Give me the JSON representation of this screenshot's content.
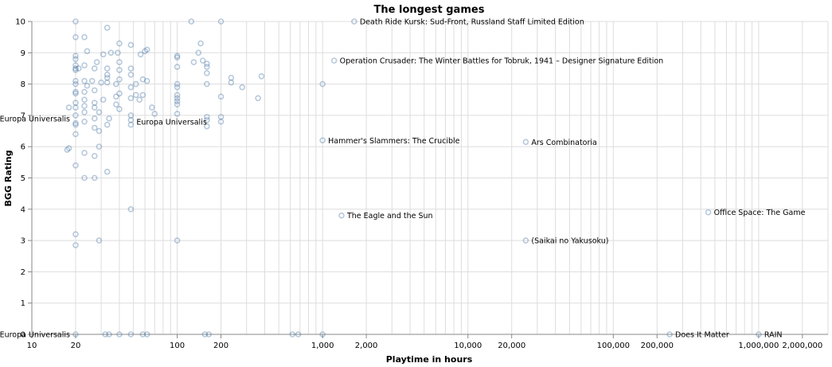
{
  "chart_data": {
    "type": "scatter",
    "title": "The longest games",
    "xlabel": "Playtime in hours",
    "ylabel": "BGG Rating",
    "x_scale": "log",
    "xlim": [
      10,
      3000000
    ],
    "ylim": [
      0,
      10
    ],
    "x_ticks": [
      10,
      20,
      100,
      200,
      1000,
      2000,
      10000,
      20000,
      100000,
      200000,
      1000000,
      2000000
    ],
    "x_tick_labels": [
      "10",
      "20",
      "100",
      "200",
      "1,000",
      "2,000",
      "10,000",
      "20,000",
      "100,000",
      "200,000",
      "1,000,000",
      "2,000,000"
    ],
    "y_ticks": [
      0,
      1,
      2,
      3,
      4,
      5,
      6,
      7,
      8,
      9,
      10
    ],
    "grid": true,
    "point_color": "#4c78a8",
    "points": [
      {
        "x": 20,
        "y": 8.9
      },
      {
        "x": 20,
        "y": 8.8
      },
      {
        "x": 20,
        "y": 8.6
      },
      {
        "x": 20,
        "y": 8.5
      },
      {
        "x": 20,
        "y": 8.45
      },
      {
        "x": 20,
        "y": 8.1
      },
      {
        "x": 20,
        "y": 8.0
      },
      {
        "x": 20,
        "y": 7.75
      },
      {
        "x": 20,
        "y": 7.7
      },
      {
        "x": 20,
        "y": 7.4
      },
      {
        "x": 20,
        "y": 7.25
      },
      {
        "x": 20,
        "y": 7.0
      },
      {
        "x": 20,
        "y": 6.75
      },
      {
        "x": 20,
        "y": 6.7
      },
      {
        "x": 20,
        "y": 6.4
      },
      {
        "x": 20,
        "y": 3.2
      },
      {
        "x": 20,
        "y": 9.5
      },
      {
        "x": 20,
        "y": 10.0
      },
      {
        "x": 20,
        "y": 5.4
      },
      {
        "x": 20,
        "y": 2.85
      },
      {
        "x": 20,
        "y": 0
      },
      {
        "x": 18,
        "y": 7.25
      },
      {
        "x": 18,
        "y": 5.95
      },
      {
        "x": 17.5,
        "y": 5.9
      },
      {
        "x": 21,
        "y": 8.5
      },
      {
        "x": 23,
        "y": 8.6
      },
      {
        "x": 23,
        "y": 8.1
      },
      {
        "x": 23,
        "y": 7.75
      },
      {
        "x": 23,
        "y": 7.5
      },
      {
        "x": 23,
        "y": 7.3
      },
      {
        "x": 23,
        "y": 7.1
      },
      {
        "x": 23,
        "y": 6.8
      },
      {
        "x": 23,
        "y": 5.8
      },
      {
        "x": 23,
        "y": 9.5
      },
      {
        "x": 23,
        "y": 5.0
      },
      {
        "x": 24,
        "y": 7.95
      },
      {
        "x": 24,
        "y": 9.05
      },
      {
        "x": 26,
        "y": 8.1
      },
      {
        "x": 27,
        "y": 7.8
      },
      {
        "x": 27,
        "y": 7.4
      },
      {
        "x": 27,
        "y": 7.25
      },
      {
        "x": 27,
        "y": 6.9
      },
      {
        "x": 27,
        "y": 6.6
      },
      {
        "x": 27,
        "y": 5.7
      },
      {
        "x": 27,
        "y": 8.5
      },
      {
        "x": 27,
        "y": 5.0
      },
      {
        "x": 28,
        "y": 8.7
      },
      {
        "x": 29,
        "y": 7.1
      },
      {
        "x": 29,
        "y": 6.5
      },
      {
        "x": 29,
        "y": 6.0
      },
      {
        "x": 29,
        "y": 3.0
      },
      {
        "x": 30,
        "y": 8.05
      },
      {
        "x": 31,
        "y": 7.5
      },
      {
        "x": 31,
        "y": 8.95
      },
      {
        "x": 32,
        "y": 0
      },
      {
        "x": 33,
        "y": 9.8
      },
      {
        "x": 33,
        "y": 8.5
      },
      {
        "x": 33,
        "y": 8.3
      },
      {
        "x": 33,
        "y": 8.2
      },
      {
        "x": 33,
        "y": 8.05
      },
      {
        "x": 33,
        "y": 6.7
      },
      {
        "x": 33,
        "y": 5.2
      },
      {
        "x": 34,
        "y": 0
      },
      {
        "x": 34,
        "y": 6.9
      },
      {
        "x": 35,
        "y": 9.0
      },
      {
        "x": 38,
        "y": 8.0
      },
      {
        "x": 38,
        "y": 7.6
      },
      {
        "x": 38,
        "y": 7.35
      },
      {
        "x": 39,
        "y": 9.0
      },
      {
        "x": 40,
        "y": 8.7
      },
      {
        "x": 40,
        "y": 8.45
      },
      {
        "x": 40,
        "y": 8.15
      },
      {
        "x": 40,
        "y": 7.7
      },
      {
        "x": 40,
        "y": 7.2
      },
      {
        "x": 40,
        "y": 9.3
      },
      {
        "x": 40,
        "y": 0
      },
      {
        "x": 48,
        "y": 9.25
      },
      {
        "x": 48,
        "y": 8.5
      },
      {
        "x": 48,
        "y": 8.3
      },
      {
        "x": 48,
        "y": 7.9
      },
      {
        "x": 48,
        "y": 7.55
      },
      {
        "x": 48,
        "y": 7.0
      },
      {
        "x": 48,
        "y": 6.85
      },
      {
        "x": 48,
        "y": 6.7
      },
      {
        "x": 48,
        "y": 4.0
      },
      {
        "x": 48,
        "y": 0
      },
      {
        "x": 52,
        "y": 8.0
      },
      {
        "x": 52,
        "y": 7.65
      },
      {
        "x": 55,
        "y": 7.5
      },
      {
        "x": 56,
        "y": 8.95
      },
      {
        "x": 58,
        "y": 8.15
      },
      {
        "x": 58,
        "y": 7.65
      },
      {
        "x": 60,
        "y": 9.05
      },
      {
        "x": 62,
        "y": 9.1
      },
      {
        "x": 62,
        "y": 8.1
      },
      {
        "x": 58,
        "y": 0
      },
      {
        "x": 62,
        "y": 0
      },
      {
        "x": 67,
        "y": 7.25
      },
      {
        "x": 70,
        "y": 7.05
      },
      {
        "x": 100,
        "y": 8.9
      },
      {
        "x": 100,
        "y": 8.85
      },
      {
        "x": 100,
        "y": 8.55
      },
      {
        "x": 100,
        "y": 7.9
      },
      {
        "x": 100,
        "y": 7.65
      },
      {
        "x": 100,
        "y": 7.55
      },
      {
        "x": 100,
        "y": 7.45
      },
      {
        "x": 100,
        "y": 7.35
      },
      {
        "x": 100,
        "y": 7.05
      },
      {
        "x": 100,
        "y": 3.0
      },
      {
        "x": 100,
        "y": 8.0
      },
      {
        "x": 125,
        "y": 10.0
      },
      {
        "x": 130,
        "y": 8.7
      },
      {
        "x": 140,
        "y": 9.0
      },
      {
        "x": 145,
        "y": 9.3
      },
      {
        "x": 150,
        "y": 8.75
      },
      {
        "x": 160,
        "y": 8.65
      },
      {
        "x": 160,
        "y": 8.55
      },
      {
        "x": 160,
        "y": 8.35
      },
      {
        "x": 160,
        "y": 8.0
      },
      {
        "x": 160,
        "y": 6.95
      },
      {
        "x": 160,
        "y": 6.85
      },
      {
        "x": 160,
        "y": 6.65
      },
      {
        "x": 155,
        "y": 0
      },
      {
        "x": 165,
        "y": 0
      },
      {
        "x": 200,
        "y": 10.0
      },
      {
        "x": 200,
        "y": 7.6
      },
      {
        "x": 200,
        "y": 6.95
      },
      {
        "x": 200,
        "y": 6.8
      },
      {
        "x": 235,
        "y": 8.2
      },
      {
        "x": 235,
        "y": 8.05
      },
      {
        "x": 280,
        "y": 7.9
      },
      {
        "x": 360,
        "y": 7.55
      },
      {
        "x": 380,
        "y": 8.25
      },
      {
        "x": 620,
        "y": 0
      },
      {
        "x": 680,
        "y": 0
      },
      {
        "x": 1000,
        "y": 8.0
      },
      {
        "x": 1000,
        "y": 0
      },
      {
        "x": 1000,
        "y": 6.2
      },
      {
        "x": 1650,
        "y": 10.0
      },
      {
        "x": 1200,
        "y": 8.75
      },
      {
        "x": 1350,
        "y": 3.8
      },
      {
        "x": 25000,
        "y": 6.15
      },
      {
        "x": 25000,
        "y": 3.0
      },
      {
        "x": 244000,
        "y": 0
      },
      {
        "x": 450000,
        "y": 3.9
      },
      {
        "x": 1000000,
        "y": 0
      }
    ],
    "annotations": [
      {
        "label": "Death Ride Kursk: Sud-Front, Russland Staff Limited Edition",
        "x": 1650,
        "y": 10.0,
        "anchor": "start"
      },
      {
        "label": "Operation Crusader: The Winter Battles for Tobruk, 1941 – Designer Signature Edition",
        "x": 1200,
        "y": 8.75,
        "anchor": "start"
      },
      {
        "label": "Europa Universalis",
        "x": 20,
        "y": 6.9,
        "anchor": "end"
      },
      {
        "label": "Europa Universalis",
        "x": 48,
        "y": 6.8,
        "anchor": "start"
      },
      {
        "label": "Hammer's Slammers: The Crucible",
        "x": 1000,
        "y": 6.2,
        "anchor": "start"
      },
      {
        "label": "Ars Combinatoria",
        "x": 25000,
        "y": 6.15,
        "anchor": "start"
      },
      {
        "label": "Office Space: The Game",
        "x": 450000,
        "y": 3.9,
        "anchor": "start"
      },
      {
        "label": "The Eagle and the Sun",
        "x": 1350,
        "y": 3.8,
        "anchor": "start"
      },
      {
        "label": "(Saikai no Yakusoku)",
        "x": 25000,
        "y": 3.0,
        "anchor": "start"
      },
      {
        "label": "Europa Universalis",
        "x": 20,
        "y": 0,
        "anchor": "end"
      },
      {
        "label": "Does It Matter",
        "x": 244000,
        "y": 0,
        "anchor": "start"
      },
      {
        "label": "RAIN",
        "x": 1000000,
        "y": 0,
        "anchor": "start"
      }
    ]
  }
}
